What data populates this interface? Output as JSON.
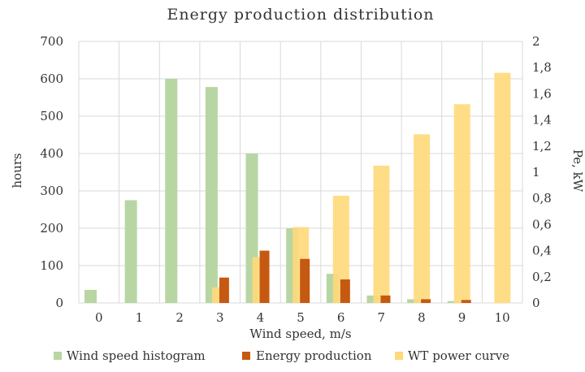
{
  "chart_data": {
    "type": "bar",
    "title": "Energy production distribution",
    "xlabel": "Wind speed, m/s",
    "ylabel_left": "hours",
    "ylabel_right": "Pe, kW",
    "ylim_left": [
      0,
      700
    ],
    "ylim_right": [
      0,
      2
    ],
    "left_ticks": [
      "0",
      "100",
      "200",
      "300",
      "400",
      "500",
      "600",
      "700"
    ],
    "right_ticks": [
      "0",
      "0,2",
      "0,4",
      "0,6",
      "0,8",
      "1",
      "1,2",
      "1,4",
      "1,6",
      "1,8",
      "2"
    ],
    "categories": [
      "0",
      "1",
      "2",
      "3",
      "4",
      "5",
      "6",
      "7",
      "8",
      "9",
      "10"
    ],
    "grid": true,
    "legend_position": "bottom",
    "series": [
      {
        "name": "Wind speed histogram",
        "color": "#b7d6a3",
        "axis": "left",
        "values": [
          35,
          275,
          600,
          578,
          400,
          200,
          78,
          20,
          10,
          5,
          0
        ]
      },
      {
        "name": "Energy production",
        "color": "#c65911",
        "axis": "left",
        "values": [
          0,
          0,
          0,
          68,
          140,
          118,
          63,
          20,
          10,
          8,
          0
        ]
      },
      {
        "name": "WT power curve",
        "color": "#ffd97a",
        "axis": "right",
        "values": [
          0,
          0,
          0,
          0.12,
          0.35,
          0.58,
          0.82,
          1.05,
          1.29,
          1.52,
          1.76
        ]
      }
    ]
  }
}
